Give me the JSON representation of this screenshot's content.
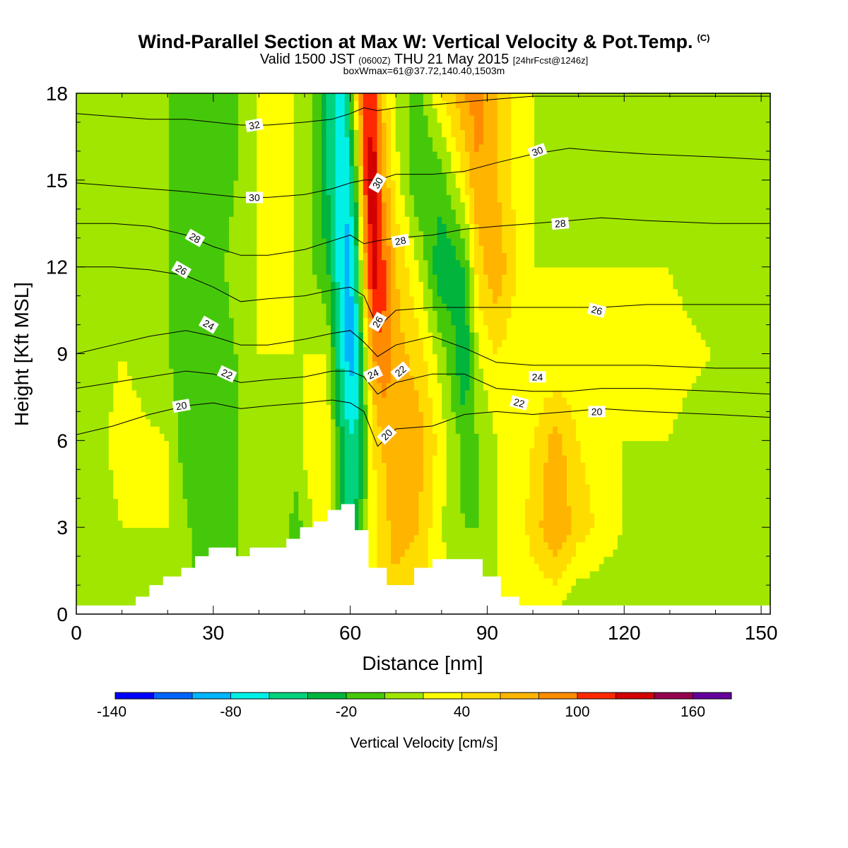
{
  "header": {
    "title": "Wind-Parallel Section at Max W: Vertical Velocity & Pot.Temp.",
    "copyright": "(C)",
    "valid_main": "Valid 1500 JST",
    "valid_utc": "(0600Z)",
    "valid_date": "THU 21 May 2015",
    "forecast": "[24hrFcst@1246z]",
    "box_info": "boxWmax=61@37.72,140.40,1503m"
  },
  "chart_data": {
    "type": "heatmap",
    "xlabel": "Distance [nm]",
    "ylabel": "Height [Kft MSL]",
    "xlim": [
      0,
      152
    ],
    "ylim": [
      0,
      18
    ],
    "x_ticks": [
      0,
      30,
      60,
      90,
      120,
      150
    ],
    "y_ticks": [
      0,
      3,
      6,
      9,
      12,
      15,
      18
    ],
    "colorbar": {
      "label": "Vertical Velocity [cm/s]",
      "tick_labels": [
        -140,
        -80,
        -20,
        40,
        100,
        160
      ],
      "colors": [
        "#0000ff",
        "#0064ff",
        "#00b4ff",
        "#00f0e6",
        "#00d27d",
        "#00b43c",
        "#46c80a",
        "#a0e600",
        "#ffff00",
        "#ffdc00",
        "#ffb400",
        "#ff8c00",
        "#ff2800",
        "#d20000",
        "#960050",
        "#64009b"
      ]
    },
    "velocity_field": {
      "x": [
        0,
        10,
        20,
        25,
        30,
        35,
        40,
        45,
        48,
        52,
        55,
        57,
        59,
        61,
        63,
        65,
        67,
        70,
        75,
        80,
        85,
        88,
        92,
        95,
        100,
        105,
        110,
        120,
        130,
        140,
        152
      ],
      "y": [
        0,
        3,
        6,
        9,
        12,
        15,
        18
      ],
      "z": [
        [
          -20,
          -20,
          -20,
          -20,
          -20,
          -20,
          -20,
          -20,
          -20,
          -20,
          -20,
          -20,
          -20,
          -20,
          -20,
          20,
          30,
          30,
          20,
          10,
          0,
          0,
          0,
          0,
          0,
          0,
          -20,
          -20,
          -20,
          -20,
          -20
        ],
        [
          -20,
          0,
          0,
          -20,
          -40,
          -20,
          0,
          0,
          -30,
          0,
          20,
          -20,
          -60,
          -60,
          -20,
          10,
          30,
          50,
          40,
          0,
          -20,
          -20,
          0,
          0,
          30,
          60,
          30,
          0,
          -20,
          -20,
          -20
        ],
        [
          -20,
          10,
          0,
          -40,
          -40,
          -20,
          0,
          -20,
          -10,
          20,
          10,
          -30,
          -70,
          -80,
          -40,
          20,
          40,
          60,
          50,
          10,
          -30,
          -20,
          0,
          0,
          20,
          50,
          20,
          0,
          0,
          -20,
          -20
        ],
        [
          -20,
          0,
          -20,
          -40,
          -40,
          -20,
          0,
          0,
          0,
          0,
          0,
          -60,
          -100,
          -110,
          -20,
          60,
          80,
          50,
          30,
          -10,
          -60,
          0,
          20,
          10,
          0,
          0,
          0,
          0,
          10,
          0,
          -20
        ],
        [
          -20,
          -20,
          -20,
          -30,
          -30,
          -10,
          0,
          0,
          0,
          -20,
          -40,
          -80,
          -110,
          -90,
          40,
          120,
          90,
          40,
          0,
          -60,
          -40,
          30,
          60,
          30,
          0,
          0,
          0,
          0,
          0,
          -20,
          -20
        ],
        [
          -20,
          -20,
          -20,
          -30,
          -40,
          -20,
          0,
          0,
          0,
          -20,
          -60,
          -80,
          -100,
          -50,
          80,
          120,
          60,
          10,
          -40,
          -30,
          20,
          60,
          40,
          20,
          0,
          -20,
          -20,
          -20,
          -10,
          -20,
          -20
        ],
        [
          -20,
          -20,
          -20,
          -30,
          -40,
          -20,
          0,
          0,
          0,
          -20,
          -60,
          -80,
          -80,
          10,
          100,
          90,
          40,
          -10,
          -30,
          20,
          60,
          70,
          40,
          20,
          0,
          -20,
          -20,
          -20,
          -10,
          -20,
          -20
        ]
      ]
    },
    "terrain": {
      "x": [
        0,
        13,
        16,
        19,
        23,
        26,
        29,
        35,
        38,
        46,
        49,
        52,
        55,
        58,
        61,
        64,
        68,
        74,
        78,
        85,
        89,
        93,
        97,
        152
      ],
      "height": [
        0.3,
        0.6,
        1.0,
        1.3,
        1.6,
        2.0,
        2.3,
        2.0,
        2.3,
        2.6,
        3.0,
        3.2,
        3.6,
        3.8,
        2.9,
        1.6,
        1.0,
        1.6,
        1.9,
        1.9,
        1.3,
        0.6,
        0.3,
        0.3
      ]
    },
    "theta_contours": [
      {
        "level": 20,
        "x": [
          0,
          8,
          16,
          24,
          30,
          36,
          42,
          50,
          56,
          60,
          63,
          66,
          70,
          78,
          85,
          92,
          100,
          108,
          115,
          125,
          140,
          152
        ],
        "height": [
          6.2,
          6.5,
          6.9,
          7.2,
          7.3,
          7.1,
          7.2,
          7.3,
          7.4,
          7.3,
          7.0,
          5.8,
          6.4,
          6.5,
          6.9,
          7.0,
          6.9,
          7.0,
          7.1,
          7.0,
          6.9,
          6.8
        ]
      },
      {
        "level": 22,
        "x": [
          0,
          8,
          16,
          24,
          30,
          36,
          42,
          50,
          56,
          60,
          63,
          66,
          70,
          78,
          85,
          92,
          100,
          108,
          115,
          125,
          140,
          152
        ],
        "height": [
          7.8,
          8.0,
          8.2,
          8.4,
          8.3,
          8.0,
          8.1,
          8.2,
          8.4,
          8.4,
          8.2,
          7.6,
          8.0,
          8.3,
          8.3,
          7.8,
          7.7,
          7.7,
          7.8,
          7.8,
          7.7,
          7.6
        ]
      },
      {
        "level": 24,
        "x": [
          0,
          8,
          16,
          24,
          30,
          36,
          42,
          50,
          56,
          60,
          63,
          66,
          70,
          78,
          85,
          92,
          100,
          108,
          115,
          125,
          140,
          152
        ],
        "height": [
          9.0,
          9.3,
          9.6,
          9.8,
          9.6,
          9.3,
          9.3,
          9.5,
          9.7,
          9.8,
          9.4,
          8.9,
          9.3,
          9.6,
          9.2,
          8.7,
          8.6,
          8.6,
          8.6,
          8.6,
          8.5,
          8.5
        ]
      },
      {
        "level": 26,
        "x": [
          0,
          8,
          16,
          24,
          30,
          36,
          42,
          50,
          56,
          60,
          63,
          66,
          70,
          78,
          85,
          92,
          100,
          108,
          115,
          125,
          140,
          152
        ],
        "height": [
          12.0,
          12.0,
          11.9,
          11.7,
          11.3,
          10.8,
          10.9,
          11.0,
          11.2,
          11.3,
          11.0,
          9.9,
          10.5,
          10.6,
          10.6,
          10.6,
          10.6,
          10.6,
          10.6,
          10.7,
          10.7,
          10.7
        ]
      },
      {
        "level": 28,
        "x": [
          0,
          8,
          16,
          24,
          30,
          36,
          42,
          50,
          56,
          60,
          63,
          66,
          70,
          78,
          85,
          92,
          100,
          108,
          115,
          125,
          140,
          152
        ],
        "height": [
          13.5,
          13.5,
          13.4,
          13.1,
          12.7,
          12.4,
          12.4,
          12.6,
          12.9,
          13.1,
          12.8,
          12.9,
          13.0,
          13.1,
          13.3,
          13.4,
          13.5,
          13.6,
          13.7,
          13.6,
          13.5,
          13.5
        ]
      },
      {
        "level": 30,
        "x": [
          0,
          8,
          16,
          24,
          30,
          36,
          42,
          50,
          56,
          60,
          63,
          66,
          70,
          78,
          85,
          92,
          100,
          108,
          115,
          125,
          140,
          152
        ],
        "height": [
          14.9,
          14.8,
          14.7,
          14.6,
          14.5,
          14.4,
          14.4,
          14.5,
          14.7,
          14.9,
          15.0,
          15.0,
          15.2,
          15.2,
          15.3,
          15.6,
          15.9,
          16.1,
          16.0,
          15.9,
          15.8,
          15.7
        ]
      },
      {
        "level": 32,
        "x": [
          0,
          8,
          16,
          24,
          30,
          36,
          42,
          50,
          56,
          60,
          63,
          66,
          70,
          78,
          85,
          92,
          100,
          108,
          115,
          125,
          140,
          152
        ],
        "height": [
          17.3,
          17.2,
          17.1,
          17.1,
          17.0,
          16.9,
          16.9,
          17.0,
          17.1,
          17.3,
          17.5,
          17.4,
          17.5,
          17.6,
          17.7,
          17.8,
          17.9,
          17.9,
          17.9,
          17.9,
          17.9,
          17.9
        ]
      }
    ],
    "contour_labels": [
      {
        "text": "32",
        "x": 39,
        "y": 16.9,
        "rot": -10
      },
      {
        "text": "30",
        "x": 39,
        "y": 14.4,
        "rot": 0
      },
      {
        "text": "28",
        "x": 26,
        "y": 13.0,
        "rot": 30
      },
      {
        "text": "26",
        "x": 23,
        "y": 11.9,
        "rot": 30
      },
      {
        "text": "24",
        "x": 29,
        "y": 10.0,
        "rot": 30
      },
      {
        "text": "22",
        "x": 33,
        "y": 8.3,
        "rot": 25
      },
      {
        "text": "20",
        "x": 23,
        "y": 7.2,
        "rot": -10
      },
      {
        "text": "30",
        "x": 66,
        "y": 14.9,
        "rot": -60
      },
      {
        "text": "28",
        "x": 71,
        "y": 12.9,
        "rot": -10
      },
      {
        "text": "26",
        "x": 66,
        "y": 10.1,
        "rot": -60
      },
      {
        "text": "24",
        "x": 65,
        "y": 8.3,
        "rot": -25
      },
      {
        "text": "22",
        "x": 71,
        "y": 8.4,
        "rot": -40
      },
      {
        "text": "20",
        "x": 68,
        "y": 6.2,
        "rot": -45
      },
      {
        "text": "30",
        "x": 101,
        "y": 16.0,
        "rot": -20
      },
      {
        "text": "28",
        "x": 106,
        "y": 13.5,
        "rot": -5
      },
      {
        "text": "26",
        "x": 114,
        "y": 10.5,
        "rot": 15
      },
      {
        "text": "24",
        "x": 101,
        "y": 8.2,
        "rot": 0
      },
      {
        "text": "22",
        "x": 97,
        "y": 7.3,
        "rot": 15
      },
      {
        "text": "20",
        "x": 114,
        "y": 7.0,
        "rot": 0
      }
    ]
  }
}
